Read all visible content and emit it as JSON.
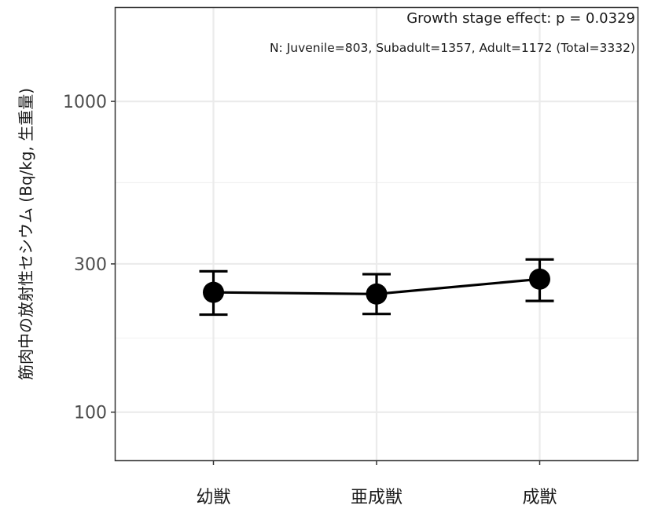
{
  "chart_data": {
    "type": "line",
    "title": "",
    "xlabel": "",
    "ylabel": "筋肉中の放射性セシウム (Bq/kg, 生重量)",
    "yscale": "log",
    "ylim": [
      70,
      2000
    ],
    "yticks": [
      100,
      300,
      1000
    ],
    "ytick_labels": [
      "100",
      "300",
      "1000"
    ],
    "categories": [
      "幼獣",
      "亜成獣",
      "成獣"
    ],
    "series": [
      {
        "values": [
          243,
          240,
          268
        ],
        "error_low": [
          206,
          207,
          228
        ],
        "error_high": [
          284,
          278,
          310
        ],
        "color": "#000000",
        "markers": true
      }
    ],
    "grid": true,
    "annotations": [
      "Growth stage effect: p = 0.0329",
      "N: Juvenile=803, Subadult=1357, Adult=1172 (Total=3332)"
    ]
  }
}
